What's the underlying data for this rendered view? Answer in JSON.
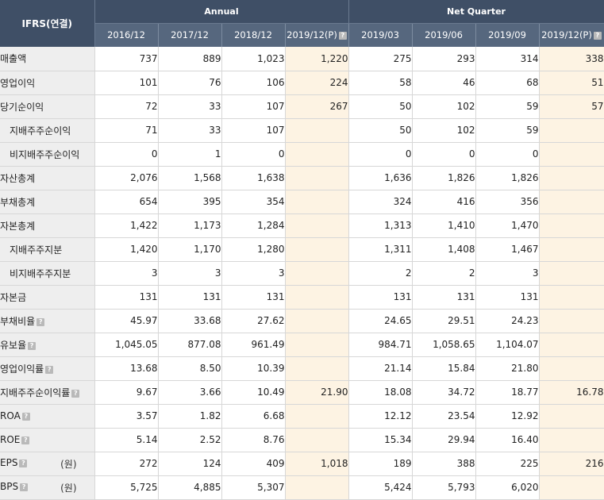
{
  "header": {
    "corner": "IFRS(연결)",
    "annual_label": "Annual",
    "quarter_label": "Net Quarter",
    "help_glyph": "?",
    "annual_periods": [
      "2016/12",
      "2017/12",
      "2018/12",
      "2019/12(P)"
    ],
    "quarter_periods": [
      "2019/03",
      "2019/06",
      "2019/09",
      "2019/12(P)"
    ]
  },
  "rows": [
    {
      "label": "매출액",
      "unit": "",
      "help": false,
      "sub": false,
      "values": [
        "737",
        "889",
        "1,023",
        "1,220",
        "275",
        "293",
        "314",
        "338"
      ]
    },
    {
      "label": "영업이익",
      "unit": "",
      "help": false,
      "sub": false,
      "values": [
        "101",
        "76",
        "106",
        "224",
        "58",
        "46",
        "68",
        "51"
      ]
    },
    {
      "label": "당기순이익",
      "unit": "",
      "help": false,
      "sub": false,
      "values": [
        "72",
        "33",
        "107",
        "267",
        "50",
        "102",
        "59",
        "57"
      ]
    },
    {
      "label": "지배주주순이익",
      "unit": "",
      "help": false,
      "sub": true,
      "values": [
        "71",
        "33",
        "107",
        "",
        "50",
        "102",
        "59",
        ""
      ]
    },
    {
      "label": "비지배주주순이익",
      "unit": "",
      "help": false,
      "sub": true,
      "values": [
        "0",
        "1",
        "0",
        "",
        "0",
        "0",
        "0",
        ""
      ]
    },
    {
      "label": "자산총계",
      "unit": "",
      "help": false,
      "sub": false,
      "values": [
        "2,076",
        "1,568",
        "1,638",
        "",
        "1,636",
        "1,826",
        "1,826",
        ""
      ]
    },
    {
      "label": "부채총계",
      "unit": "",
      "help": false,
      "sub": false,
      "values": [
        "654",
        "395",
        "354",
        "",
        "324",
        "416",
        "356",
        ""
      ]
    },
    {
      "label": "자본총계",
      "unit": "",
      "help": false,
      "sub": false,
      "values": [
        "1,422",
        "1,173",
        "1,284",
        "",
        "1,313",
        "1,410",
        "1,470",
        ""
      ]
    },
    {
      "label": "지배주주지분",
      "unit": "",
      "help": false,
      "sub": true,
      "values": [
        "1,420",
        "1,170",
        "1,280",
        "",
        "1,311",
        "1,408",
        "1,467",
        ""
      ]
    },
    {
      "label": "비지배주주지분",
      "unit": "",
      "help": false,
      "sub": true,
      "values": [
        "3",
        "3",
        "3",
        "",
        "2",
        "2",
        "3",
        ""
      ]
    },
    {
      "label": "자본금",
      "unit": "",
      "help": false,
      "sub": false,
      "values": [
        "131",
        "131",
        "131",
        "",
        "131",
        "131",
        "131",
        ""
      ]
    },
    {
      "label": "부채비율",
      "unit": "",
      "help": true,
      "sub": false,
      "values": [
        "45.97",
        "33.68",
        "27.62",
        "",
        "24.65",
        "29.51",
        "24.23",
        ""
      ]
    },
    {
      "label": "유보율",
      "unit": "",
      "help": true,
      "sub": false,
      "values": [
        "1,045.05",
        "877.08",
        "961.49",
        "",
        "984.71",
        "1,058.65",
        "1,104.07",
        ""
      ]
    },
    {
      "label": "영업이익률",
      "unit": "",
      "help": true,
      "sub": false,
      "values": [
        "13.68",
        "8.50",
        "10.39",
        "",
        "21.14",
        "15.84",
        "21.80",
        ""
      ]
    },
    {
      "label": "지배주주순이익률",
      "unit": "",
      "help": true,
      "sub": false,
      "values": [
        "9.67",
        "3.66",
        "10.49",
        "21.90",
        "18.08",
        "34.72",
        "18.77",
        "16.78"
      ]
    },
    {
      "label": "ROA",
      "unit": "",
      "help": true,
      "sub": false,
      "values": [
        "3.57",
        "1.82",
        "6.68",
        "",
        "12.12",
        "23.54",
        "12.92",
        ""
      ]
    },
    {
      "label": "ROE",
      "unit": "",
      "help": true,
      "sub": false,
      "values": [
        "5.14",
        "2.52",
        "8.76",
        "",
        "15.34",
        "29.94",
        "16.40",
        ""
      ]
    },
    {
      "label": "EPS",
      "unit": "(원)",
      "help": true,
      "sub": false,
      "values": [
        "272",
        "124",
        "409",
        "1,018",
        "189",
        "388",
        "225",
        "216"
      ]
    },
    {
      "label": "BPS",
      "unit": "(원)",
      "help": true,
      "sub": false,
      "values": [
        "5,725",
        "4,885",
        "5,307",
        "",
        "5,424",
        "5,793",
        "6,020",
        ""
      ]
    }
  ]
}
